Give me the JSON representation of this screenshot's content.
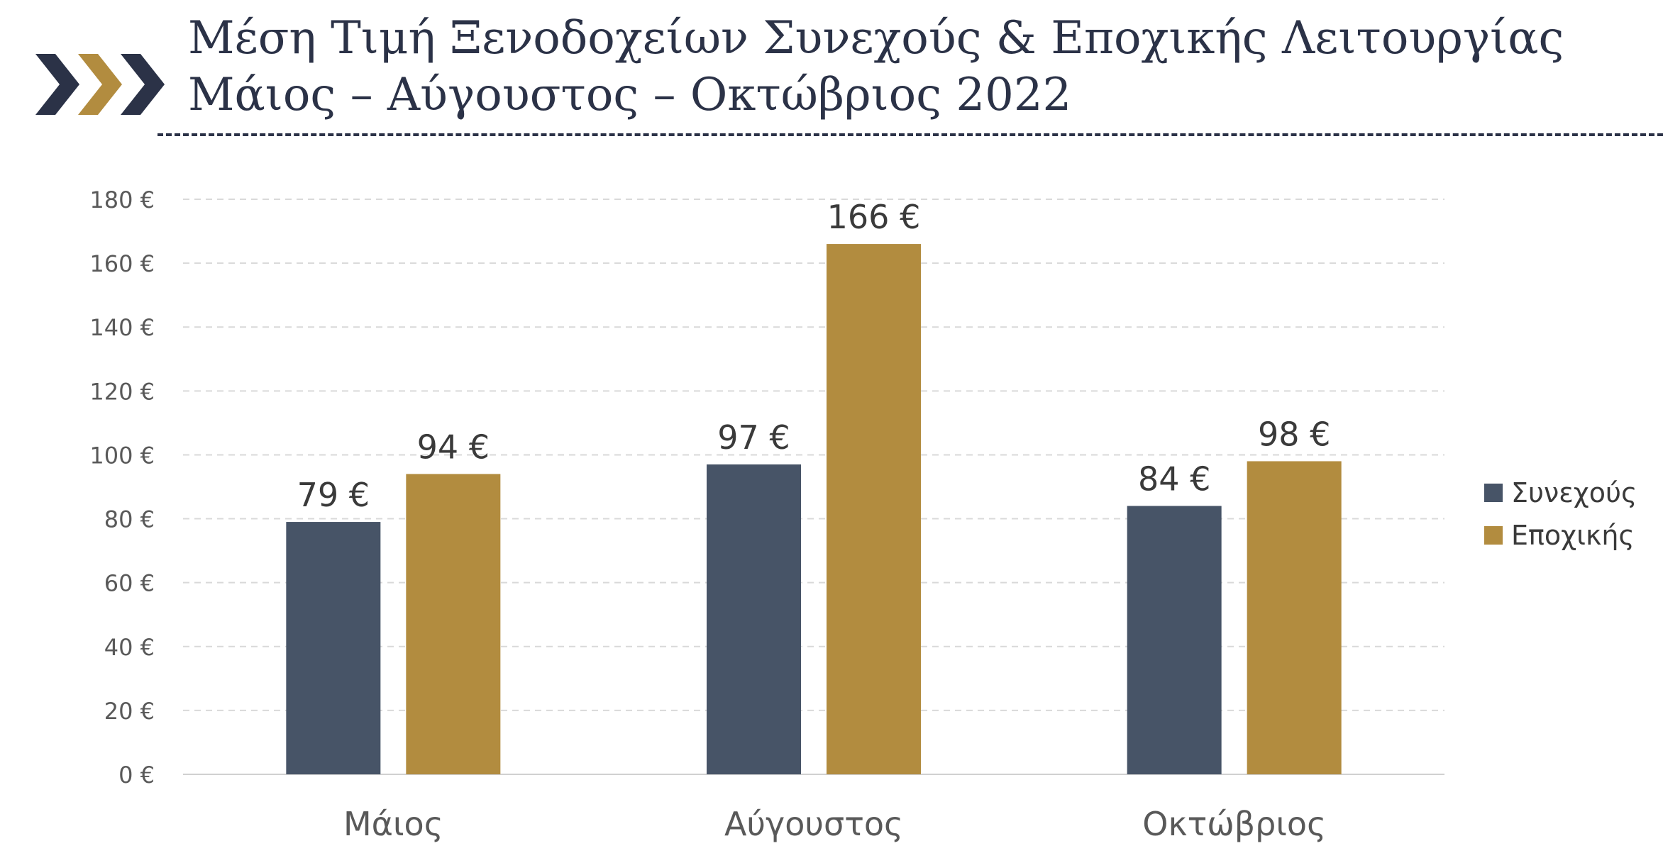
{
  "header": {
    "title_line1": "Μέση Τιμή Ξενοδοχείων Συνεχούς & Εποχικής Λειτουργίας",
    "title_line2": "Μάιος – Αύγουστος – Οκτώβριος 2022",
    "logo": "triple-chevron-icon",
    "colors": {
      "navy": "#2b3247",
      "gold": "#b28c3f"
    }
  },
  "chart_data": {
    "type": "bar",
    "categories": [
      "Μάιος",
      "Αύγουστος",
      "Οκτώβριος"
    ],
    "series": [
      {
        "name": "Συνεχούς",
        "values": [
          79,
          97,
          84
        ],
        "labels": [
          "79 €",
          "97 €",
          "84 €"
        ],
        "color": "#475467"
      },
      {
        "name": "Εποχικής",
        "values": [
          94,
          166,
          98
        ],
        "labels": [
          "94 €",
          "166 €",
          "98 €"
        ],
        "color": "#b28c3f"
      }
    ],
    "yticks": [
      0,
      20,
      40,
      60,
      80,
      100,
      120,
      140,
      160,
      180
    ],
    "ytick_labels": [
      "0 €",
      "20 €",
      "40 €",
      "60 €",
      "80 €",
      "100 €",
      "120 €",
      "140 €",
      "160 €",
      "180 €"
    ],
    "ylim": [
      0,
      180
    ],
    "grid": true,
    "legend": "right"
  }
}
